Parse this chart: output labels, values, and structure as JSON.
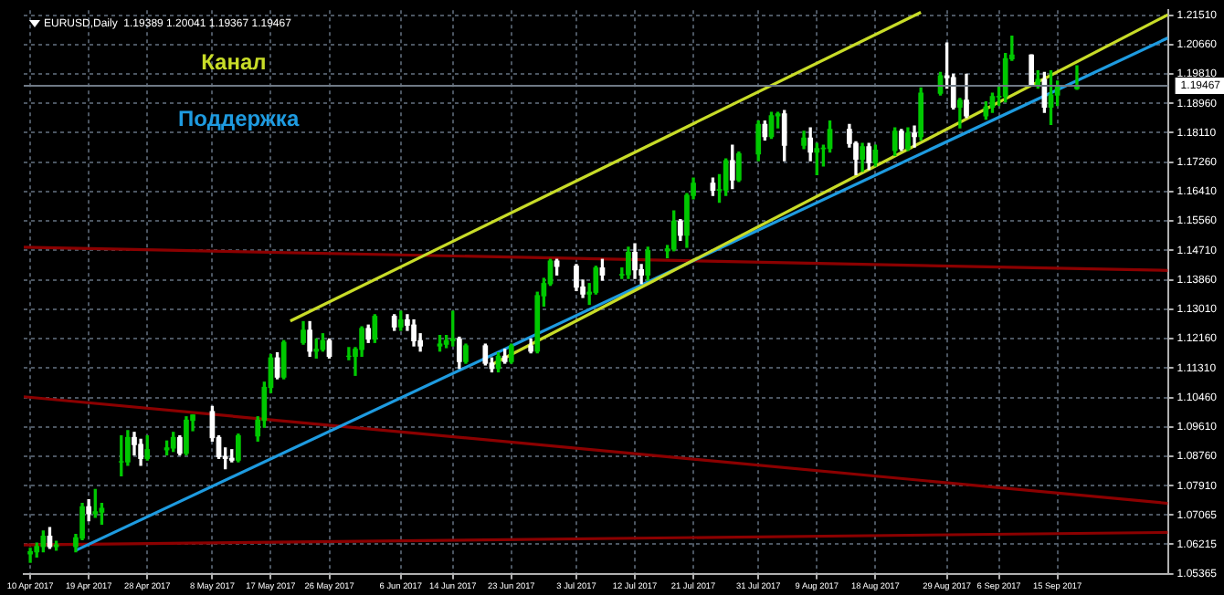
{
  "chart_data": {
    "type": "candlestick",
    "title": "EURUSD,Daily  1.19389 1.20041 1.19367 1.19467",
    "xlim": [
      "2017-04-09",
      "2017-10-02"
    ],
    "xticks": [
      {
        "value": "2017-04-10",
        "label": "10 Apr 2017"
      },
      {
        "value": "2017-04-19",
        "label": "19 Apr 2017"
      },
      {
        "value": "2017-04-28",
        "label": "28 Apr 2017"
      },
      {
        "value": "2017-05-08",
        "label": "8 May 2017"
      },
      {
        "value": "2017-05-17",
        "label": "17 May 2017"
      },
      {
        "value": "2017-05-26",
        "label": "26 May 2017"
      },
      {
        "value": "2017-06-06",
        "label": "6 Jun 2017"
      },
      {
        "value": "2017-06-14",
        "label": "14 Jun 2017"
      },
      {
        "value": "2017-06-23",
        "label": "23 Jun 2017"
      },
      {
        "value": "2017-07-03",
        "label": "3 Jul 2017"
      },
      {
        "value": "2017-07-12",
        "label": "12 Jul 2017"
      },
      {
        "value": "2017-07-21",
        "label": "21 Jul 2017"
      },
      {
        "value": "2017-07-31",
        "label": "31 Jul 2017"
      },
      {
        "value": "2017-08-09",
        "label": "9 Aug 2017"
      },
      {
        "value": "2017-08-18",
        "label": "18 Aug 2017"
      },
      {
        "value": "2017-08-29",
        "label": "29 Aug 2017"
      },
      {
        "value": "2017-09-06",
        "label": "6 Sep 2017"
      },
      {
        "value": "2017-09-15",
        "label": "15 Sep 2017"
      }
    ],
    "ylim": [
      1.05365,
      1.2165
    ],
    "yticks": [
      {
        "value": 1.2151,
        "label": "1.21510"
      },
      {
        "value": 1.2066,
        "label": "1.20660"
      },
      {
        "value": 1.1981,
        "label": "1.19810"
      },
      {
        "value": 1.1896,
        "label": "1.18960"
      },
      {
        "value": 1.1811,
        "label": "1.18110"
      },
      {
        "value": 1.1726,
        "label": "1.17260"
      },
      {
        "value": 1.1641,
        "label": "1.16410"
      },
      {
        "value": 1.1556,
        "label": "1.15560"
      },
      {
        "value": 1.1471,
        "label": "1.14710"
      },
      {
        "value": 1.1386,
        "label": "1.13860"
      },
      {
        "value": 1.1301,
        "label": "1.13010"
      },
      {
        "value": 1.1216,
        "label": "1.12160"
      },
      {
        "value": 1.1131,
        "label": "1.11310"
      },
      {
        "value": 1.1046,
        "label": "1.10460"
      },
      {
        "value": 1.0961,
        "label": "1.09610"
      },
      {
        "value": 1.0876,
        "label": "1.08760"
      },
      {
        "value": 1.0791,
        "label": "1.07910"
      },
      {
        "value": 1.07065,
        "label": "1.07065"
      },
      {
        "value": 1.06215,
        "label": "1.06215"
      },
      {
        "value": 1.05365,
        "label": "1.05365"
      }
    ],
    "grid": true,
    "ref_lines": [
      {
        "axis": "y",
        "value": 1.19467,
        "label": "1.19467",
        "color": "#6f7a86"
      }
    ],
    "colors": [
      "#00c800",
      "#00c800",
      "#00c800",
      "#ffffff",
      "#00c800",
      "#00c800",
      "#00c800",
      "#ffffff",
      "#00c800",
      "#00c800",
      "#00c800",
      "#00c800",
      "#ffffff",
      "#ffffff",
      "#00c800",
      "#00c800",
      "#00c800",
      "#ffffff",
      "#00c800",
      "#00c800",
      "#ffffff",
      "#ffffff",
      "#ffffff",
      "#ffffff",
      "#00c800",
      "#00c800",
      "#00c800",
      "#00c800",
      "#ffffff",
      "#00c800",
      "#00c800",
      "#ffffff",
      "#00c800",
      "#00c800",
      "#ffffff",
      "#00c800",
      "#00c800",
      "#00c800",
      "#ffffff",
      "#00c800",
      "#ffffff",
      "#00c800",
      "#ffffff",
      "#ffffff",
      "#ffffff",
      "#00c800",
      "#00c800",
      "#00c800",
      "#ffffff",
      "#00c800",
      "#ffffff",
      "#ffffff",
      "#00c800",
      "#ffffff",
      "#00c800",
      "#ffffff",
      "#00c800",
      "#00c800",
      "#00c800",
      "#ffffff",
      "#ffffff",
      "#ffffff",
      "#00c800",
      "#00c800",
      "#ffffff",
      "#00c800",
      "#00c800",
      "#ffffff",
      "#ffffff",
      "#00c800",
      "#00c800",
      "#00c800",
      "#ffffff",
      "#00c800",
      "#00c800",
      "#ffffff",
      "#00c800",
      "#00c800",
      "#ffffff",
      "#00c800",
      "#00c800",
      "#ffffff",
      "#00c800",
      "#00c800",
      "#ffffff",
      "#00c800",
      "#ffffff",
      "#00c800",
      "#00c800",
      "#00c800",
      "#ffffff",
      "#ffffff",
      "#00c800",
      "#ffffff",
      "#00c800",
      "#00c800",
      "#ffffff",
      "#00c800",
      "#ffffff",
      "#00c800",
      "#00c800",
      "#ffffff",
      "#ffffff",
      "#00c800",
      "#ffffff",
      "#00c800",
      "#00c800",
      "#00c800",
      "#00c800",
      "#00c800",
      "#ffffff",
      "#00c800",
      "#ffffff",
      "#00c800",
      "#00c800",
      "#00c800"
    ],
    "x": [
      "2017-04-10",
      "2017-04-11",
      "2017-04-12",
      "2017-04-13",
      "2017-04-14",
      "2017-04-17",
      "2017-04-18",
      "2017-04-19",
      "2017-04-20",
      "2017-04-21",
      "2017-04-24",
      "2017-04-25",
      "2017-04-26",
      "2017-04-27",
      "2017-04-28",
      "2017-05-01",
      "2017-05-02",
      "2017-05-03",
      "2017-05-04",
      "2017-05-05",
      "2017-05-08",
      "2017-05-09",
      "2017-05-10",
      "2017-05-11",
      "2017-05-12",
      "2017-05-15",
      "2017-05-16",
      "2017-05-17",
      "2017-05-18",
      "2017-05-19",
      "2017-05-22",
      "2017-05-23",
      "2017-05-24",
      "2017-05-25",
      "2017-05-26",
      "2017-05-29",
      "2017-05-30",
      "2017-05-31",
      "2017-06-01",
      "2017-06-02",
      "2017-06-05",
      "2017-06-06",
      "2017-06-07",
      "2017-06-08",
      "2017-06-09",
      "2017-06-12",
      "2017-06-13",
      "2017-06-14",
      "2017-06-15",
      "2017-06-16",
      "2017-06-19",
      "2017-06-20",
      "2017-06-21",
      "2017-06-22",
      "2017-06-23",
      "2017-06-26",
      "2017-06-27",
      "2017-06-28",
      "2017-06-29",
      "2017-06-30",
      "2017-07-03",
      "2017-07-04",
      "2017-07-05",
      "2017-07-06",
      "2017-07-07",
      "2017-07-10",
      "2017-07-11",
      "2017-07-12",
      "2017-07-13",
      "2017-07-14",
      "2017-07-17",
      "2017-07-18",
      "2017-07-19",
      "2017-07-20",
      "2017-07-21",
      "2017-07-24",
      "2017-07-25",
      "2017-07-26",
      "2017-07-27",
      "2017-07-28",
      "2017-07-31",
      "2017-08-01",
      "2017-08-02",
      "2017-08-03",
      "2017-08-04",
      "2017-08-07",
      "2017-08-08",
      "2017-08-09",
      "2017-08-10",
      "2017-08-11",
      "2017-08-14",
      "2017-08-15",
      "2017-08-16",
      "2017-08-17",
      "2017-08-18",
      "2017-08-21",
      "2017-08-22",
      "2017-08-23",
      "2017-08-24",
      "2017-08-25",
      "2017-08-28",
      "2017-08-29",
      "2017-08-30",
      "2017-08-31",
      "2017-09-01",
      "2017-09-04",
      "2017-09-05",
      "2017-09-06",
      "2017-09-07",
      "2017-09-08",
      "2017-09-11",
      "2017-09-12",
      "2017-09-13",
      "2017-09-14",
      "2017-09-15",
      "2017-09-18"
    ],
    "ohlc": [
      [
        1.0594,
        1.061,
        1.057,
        1.06
      ],
      [
        1.06,
        1.0625,
        1.0585,
        1.0615
      ],
      [
        1.0615,
        1.066,
        1.06,
        1.0645
      ],
      [
        1.0645,
        1.067,
        1.061,
        1.0615
      ],
      [
        1.0615,
        1.063,
        1.0605,
        1.062
      ],
      [
        1.0615,
        1.065,
        1.06,
        1.064
      ],
      [
        1.064,
        1.074,
        1.0635,
        1.073
      ],
      [
        1.073,
        1.075,
        1.069,
        1.071
      ],
      [
        1.071,
        1.078,
        1.07,
        1.0715
      ],
      [
        1.0715,
        1.074,
        1.068,
        1.0725
      ],
      [
        1.086,
        1.0935,
        1.082,
        1.086
      ],
      [
        1.086,
        1.095,
        1.085,
        1.093
      ],
      [
        1.093,
        1.0945,
        1.088,
        1.091
      ],
      [
        1.091,
        1.0925,
        1.085,
        1.087
      ],
      [
        1.087,
        1.0935,
        1.0865,
        1.0895
      ],
      [
        1.0895,
        1.092,
        1.088,
        1.09
      ],
      [
        1.09,
        1.0945,
        1.089,
        1.093
      ],
      [
        1.093,
        1.0935,
        1.088,
        1.0885
      ],
      [
        1.0885,
        1.099,
        1.088,
        1.098
      ],
      [
        1.098,
        1.0995,
        1.095,
        1.0995
      ],
      [
        1.1005,
        1.102,
        1.092,
        1.093
      ],
      [
        1.093,
        1.0935,
        1.087,
        1.0875
      ],
      [
        1.0875,
        1.09,
        1.084,
        1.087
      ],
      [
        1.087,
        1.0895,
        1.086,
        1.0865
      ],
      [
        1.0865,
        1.094,
        1.086,
        1.0935
      ],
      [
        1.0935,
        1.099,
        1.092,
        1.098
      ],
      [
        1.098,
        1.109,
        1.096,
        1.1075
      ],
      [
        1.1075,
        1.117,
        1.106,
        1.116
      ],
      [
        1.116,
        1.1175,
        1.11,
        1.1105
      ],
      [
        1.1105,
        1.121,
        1.11,
        1.1205
      ],
      [
        1.1205,
        1.1265,
        1.12,
        1.124
      ],
      [
        1.124,
        1.1265,
        1.1165,
        1.118
      ],
      [
        1.118,
        1.1215,
        1.116,
        1.1185
      ],
      [
        1.1185,
        1.123,
        1.118,
        1.121
      ],
      [
        1.121,
        1.1215,
        1.116,
        1.1165
      ],
      [
        1.1165,
        1.119,
        1.1155,
        1.1165
      ],
      [
        1.1165,
        1.119,
        1.111,
        1.1185
      ],
      [
        1.1185,
        1.125,
        1.1165,
        1.1245
      ],
      [
        1.1245,
        1.1255,
        1.1205,
        1.1215
      ],
      [
        1.1215,
        1.1285,
        1.1205,
        1.128
      ],
      [
        1.128,
        1.1285,
        1.124,
        1.125
      ],
      [
        1.125,
        1.1295,
        1.124,
        1.127
      ],
      [
        1.127,
        1.1285,
        1.124,
        1.1255
      ],
      [
        1.1255,
        1.127,
        1.1195,
        1.121
      ],
      [
        1.121,
        1.123,
        1.118,
        1.1195
      ],
      [
        1.1195,
        1.1225,
        1.118,
        1.12
      ],
      [
        1.12,
        1.1225,
        1.119,
        1.121
      ],
      [
        1.121,
        1.1295,
        1.1195,
        1.1215
      ],
      [
        1.1215,
        1.122,
        1.113,
        1.115
      ],
      [
        1.115,
        1.12,
        1.1145,
        1.1195
      ],
      [
        1.1195,
        1.12,
        1.114,
        1.1145
      ],
      [
        1.1145,
        1.116,
        1.112,
        1.113
      ],
      [
        1.113,
        1.1175,
        1.112,
        1.1165
      ],
      [
        1.1165,
        1.1185,
        1.1145,
        1.115
      ],
      [
        1.115,
        1.12,
        1.1145,
        1.1195
      ],
      [
        1.1195,
        1.1215,
        1.1175,
        1.118
      ],
      [
        1.118,
        1.135,
        1.1175,
        1.134
      ],
      [
        1.134,
        1.139,
        1.131,
        1.1375
      ],
      [
        1.1375,
        1.1445,
        1.137,
        1.144
      ],
      [
        1.144,
        1.1445,
        1.14,
        1.1425
      ],
      [
        1.1425,
        1.143,
        1.1355,
        1.1365
      ],
      [
        1.1365,
        1.1385,
        1.1335,
        1.1345
      ],
      [
        1.1345,
        1.1375,
        1.1315,
        1.135
      ],
      [
        1.135,
        1.1425,
        1.1345,
        1.142
      ],
      [
        1.142,
        1.1445,
        1.1385,
        1.14
      ],
      [
        1.14,
        1.142,
        1.139,
        1.1401
      ],
      [
        1.1401,
        1.148,
        1.139,
        1.1465
      ],
      [
        1.1465,
        1.149,
        1.139,
        1.1415
      ],
      [
        1.1415,
        1.143,
        1.1375,
        1.14
      ],
      [
        1.14,
        1.148,
        1.1385,
        1.147
      ],
      [
        1.147,
        1.1485,
        1.145,
        1.1475
      ],
      [
        1.1475,
        1.1585,
        1.147,
        1.1555
      ],
      [
        1.1555,
        1.156,
        1.15,
        1.1515
      ],
      [
        1.1515,
        1.1635,
        1.148,
        1.163
      ],
      [
        1.163,
        1.168,
        1.162,
        1.1665
      ],
      [
        1.1665,
        1.168,
        1.163,
        1.1645
      ],
      [
        1.1645,
        1.169,
        1.161,
        1.1646
      ],
      [
        1.1646,
        1.1735,
        1.163,
        1.173
      ],
      [
        1.173,
        1.1775,
        1.165,
        1.1675
      ],
      [
        1.1675,
        1.1755,
        1.167,
        1.175
      ],
      [
        1.175,
        1.1845,
        1.173,
        1.1835
      ],
      [
        1.1835,
        1.1845,
        1.179,
        1.18
      ],
      [
        1.18,
        1.187,
        1.1795,
        1.186
      ],
      [
        1.186,
        1.187,
        1.1825,
        1.1865
      ],
      [
        1.1865,
        1.1875,
        1.173,
        1.1775
      ],
      [
        1.1775,
        1.1815,
        1.1765,
        1.1795
      ],
      [
        1.1795,
        1.1825,
        1.173,
        1.1755
      ],
      [
        1.1755,
        1.178,
        1.169,
        1.1765
      ],
      [
        1.1765,
        1.1775,
        1.1715,
        1.1766
      ],
      [
        1.1766,
        1.1845,
        1.1755,
        1.182
      ],
      [
        1.182,
        1.1835,
        1.177,
        1.178
      ],
      [
        1.178,
        1.1785,
        1.169,
        1.1735
      ],
      [
        1.1735,
        1.178,
        1.17,
        1.177
      ],
      [
        1.177,
        1.178,
        1.1705,
        1.1725
      ],
      [
        1.1725,
        1.1775,
        1.1715,
        1.176
      ],
      [
        1.176,
        1.1825,
        1.1745,
        1.1815
      ],
      [
        1.1815,
        1.182,
        1.176,
        1.1765
      ],
      [
        1.1765,
        1.1825,
        1.176,
        1.181
      ],
      [
        1.181,
        1.183,
        1.177,
        1.18
      ],
      [
        1.18,
        1.194,
        1.179,
        1.1925
      ],
      [
        1.1925,
        1.1985,
        1.192,
        1.1975
      ],
      [
        1.1975,
        1.207,
        1.194,
        1.197
      ],
      [
        1.197,
        1.198,
        1.188,
        1.1885
      ],
      [
        1.1885,
        1.191,
        1.1825,
        1.1905
      ],
      [
        1.1905,
        1.198,
        1.1855,
        1.186
      ],
      [
        1.186,
        1.19,
        1.185,
        1.1885
      ],
      [
        1.1885,
        1.1925,
        1.187,
        1.1915
      ],
      [
        1.1915,
        1.1945,
        1.189,
        1.1916
      ],
      [
        1.1916,
        1.204,
        1.19,
        1.2025
      ],
      [
        1.2025,
        1.209,
        1.202,
        1.2035
      ],
      [
        1.2035,
        1.2036,
        1.195,
        1.195
      ],
      [
        1.195,
        1.199,
        1.194,
        1.1965
      ],
      [
        1.1965,
        1.1985,
        1.187,
        1.1885
      ],
      [
        1.1885,
        1.199,
        1.1835,
        1.192
      ],
      [
        1.192,
        1.196,
        1.189,
        1.1945
      ],
      [
        1.19389,
        1.20041,
        1.19367,
        1.19467
      ]
    ],
    "series": [
      {
        "type": "line",
        "name": "Канал",
        "color": "#c8dc28",
        "x": [
          "2017-05-20",
          "2017-08-25"
        ],
        "values": [
          1.1267,
          1.2159
        ]
      },
      {
        "type": "line",
        "color": "#c8dc28",
        "x": [
          "2017-06-20",
          "2017-10-02"
        ],
        "values": [
          1.1141,
          1.2152
        ]
      },
      {
        "type": "line",
        "name": "Поддержка",
        "color": "#1e9be0",
        "x": [
          "2017-04-17",
          "2017-10-02"
        ],
        "values": [
          1.0604,
          1.2085
        ]
      },
      {
        "type": "line",
        "color": "#8b0000",
        "x": [
          "2017-04-09",
          "2017-10-02"
        ],
        "values": [
          1.148,
          1.1413
        ]
      },
      {
        "type": "line",
        "color": "#8b0000",
        "x": [
          "2017-04-09",
          "2017-10-02"
        ],
        "values": [
          1.1048,
          1.074
        ]
      },
      {
        "type": "line",
        "color": "#8b0000",
        "x": [
          "2017-04-09",
          "2017-10-02"
        ],
        "values": [
          1.062,
          1.0656
        ]
      }
    ]
  }
}
